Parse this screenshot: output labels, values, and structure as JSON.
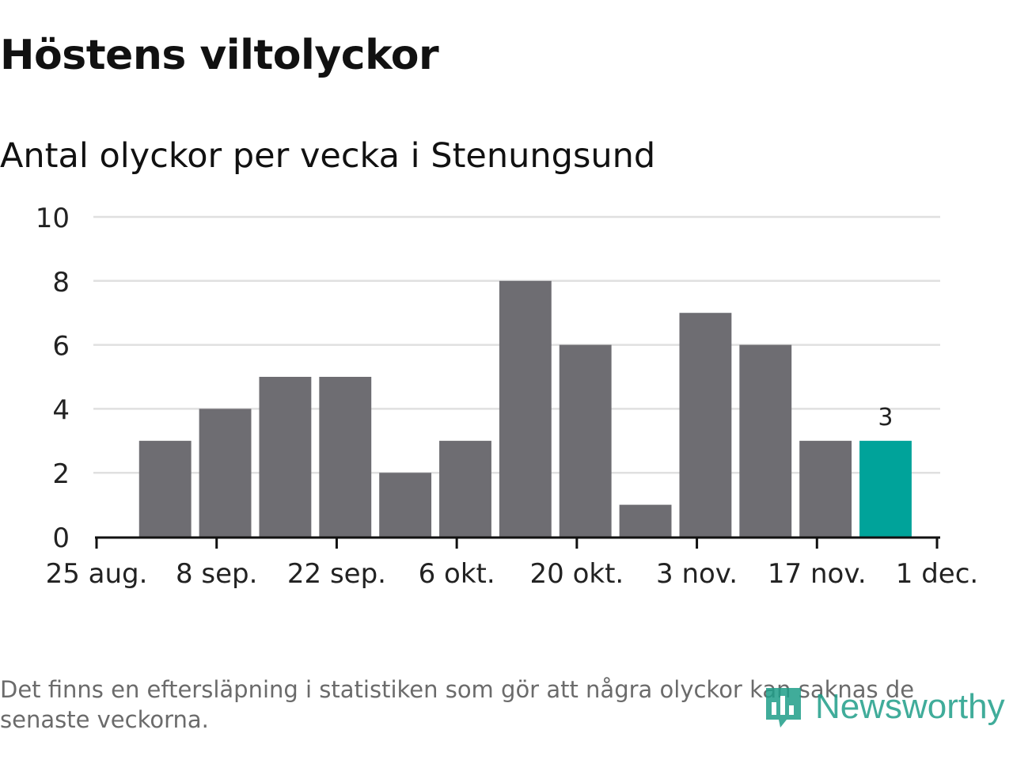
{
  "title": "Höstens viltolyckor",
  "subtitle": "Antal olyckor per vecka i Stenungsund",
  "note": "Det finns en eftersläpning i statistiken som gör att några olyckor kan saknas de senaste veckorna.",
  "logo": {
    "text": "Newsworthy",
    "icon": "newsworthy-logo-icon"
  },
  "colors": {
    "bar": "#6e6d72",
    "highlight": "#00a39a",
    "grid": "#e0e0e0",
    "axis": "#111111",
    "logo": "#1f9e89"
  },
  "chart_data": {
    "type": "bar",
    "title": "Höstens viltolyckor",
    "subtitle": "Antal olyckor per vecka i Stenungsund",
    "xlabel": "",
    "ylabel": "",
    "ylim": [
      0,
      10
    ],
    "yticks": [
      0,
      2,
      4,
      6,
      8,
      10
    ],
    "grid": true,
    "x_axis": {
      "type": "date",
      "range": [
        "2024-08-25",
        "2024-12-01"
      ],
      "ticks": [
        {
          "date": "2024-08-25",
          "label": "25 aug."
        },
        {
          "date": "2024-09-08",
          "label": "8 sep."
        },
        {
          "date": "2024-09-22",
          "label": "22 sep."
        },
        {
          "date": "2024-10-06",
          "label": "6 okt."
        },
        {
          "date": "2024-10-20",
          "label": "20 okt."
        },
        {
          "date": "2024-11-03",
          "label": "3 nov."
        },
        {
          "date": "2024-11-17",
          "label": "17 nov."
        },
        {
          "date": "2024-12-01",
          "label": "1 dec."
        }
      ]
    },
    "x": [
      "2024-09-02",
      "2024-09-09",
      "2024-09-16",
      "2024-09-23",
      "2024-09-30",
      "2024-10-07",
      "2024-10-14",
      "2024-10-21",
      "2024-10-28",
      "2024-11-04",
      "2024-11-11",
      "2024-11-18",
      "2024-11-25"
    ],
    "values": [
      3,
      4,
      5,
      5,
      2,
      3,
      8,
      6,
      1,
      7,
      6,
      3,
      3
    ],
    "highlight_last": true,
    "data_labels": [
      {
        "x": "2024-11-25",
        "value": "3"
      }
    ]
  }
}
